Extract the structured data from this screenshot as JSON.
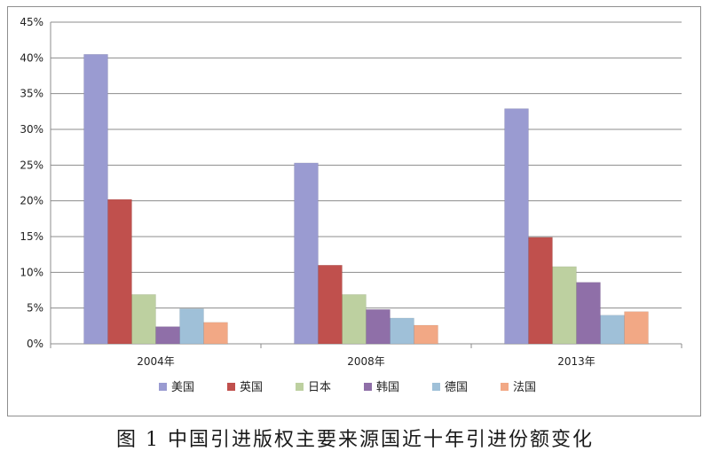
{
  "chart_data": {
    "type": "bar",
    "categories": [
      "2004年",
      "2008年",
      "2013年"
    ],
    "series": [
      {
        "name": "美国",
        "color": "#9a9bd1",
        "values": [
          40.5,
          25.3,
          32.9
        ]
      },
      {
        "name": "英国",
        "color": "#c0504d",
        "values": [
          20.2,
          11.0,
          14.9
        ]
      },
      {
        "name": "日本",
        "color": "#bdd0a0",
        "values": [
          6.9,
          6.9,
          10.8
        ]
      },
      {
        "name": "韩国",
        "color": "#8f6fa8",
        "values": [
          2.4,
          4.8,
          8.6
        ]
      },
      {
        "name": "德国",
        "color": "#9fc0d8",
        "values": [
          4.9,
          3.6,
          4.0
        ]
      },
      {
        "name": "法国",
        "color": "#f2a885",
        "values": [
          3.0,
          2.6,
          4.5
        ]
      }
    ],
    "ylim": [
      0,
      45
    ],
    "yticks": [
      "0%",
      "5%",
      "10%",
      "15%",
      "20%",
      "25%",
      "30%",
      "35%",
      "40%",
      "45%"
    ],
    "grid": true,
    "legend_position": "bottom",
    "title": "",
    "xlabel": "",
    "ylabel": ""
  },
  "caption": "图 1  中国引进版权主要来源国近十年引进份额变化"
}
